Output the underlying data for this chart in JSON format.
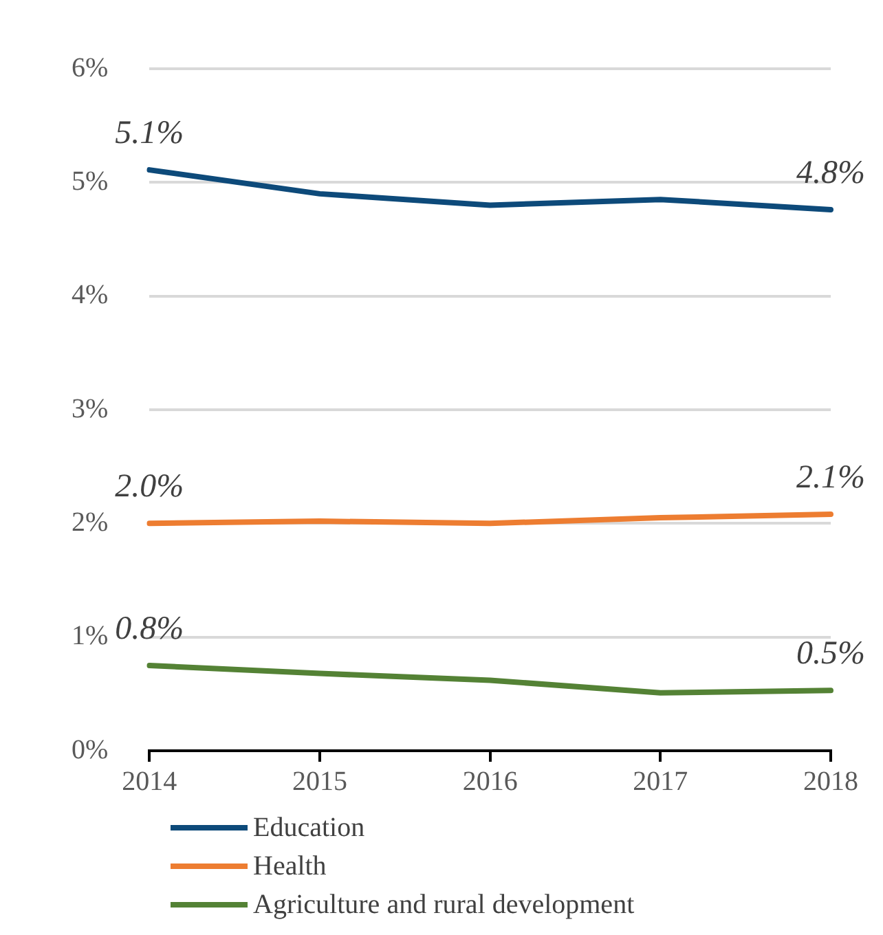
{
  "chart_data": {
    "type": "line",
    "categories": [
      "2014",
      "2015",
      "2016",
      "2017",
      "2018"
    ],
    "series": [
      {
        "name": "Education",
        "color": "#0d4a7a",
        "values": [
          5.11,
          4.9,
          4.8,
          4.85,
          4.76
        ],
        "value_labels": [
          "5.1%",
          null,
          null,
          null,
          "4.8%"
        ]
      },
      {
        "name": "Health",
        "color": "#ed7d31",
        "values": [
          2.0,
          2.02,
          2.0,
          2.05,
          2.08
        ],
        "value_labels": [
          "2.0%",
          null,
          null,
          null,
          "2.1%"
        ]
      },
      {
        "name": "Agriculture and rural development",
        "color": "#548235",
        "values": [
          0.75,
          0.68,
          0.62,
          0.51,
          0.53
        ],
        "value_labels": [
          "0.8%",
          null,
          null,
          null,
          "0.5%"
        ]
      }
    ],
    "ylim": [
      0,
      6
    ],
    "yticks": [
      {
        "value": 0,
        "label": "0%"
      },
      {
        "value": 1,
        "label": "1%"
      },
      {
        "value": 2,
        "label": "2%"
      },
      {
        "value": 3,
        "label": "3%"
      },
      {
        "value": 4,
        "label": "4%"
      },
      {
        "value": 5,
        "label": "5%"
      },
      {
        "value": 6,
        "label": "6%"
      }
    ],
    "grid": "y",
    "legend": "bottom",
    "marker": "none",
    "line_style": "solid"
  }
}
